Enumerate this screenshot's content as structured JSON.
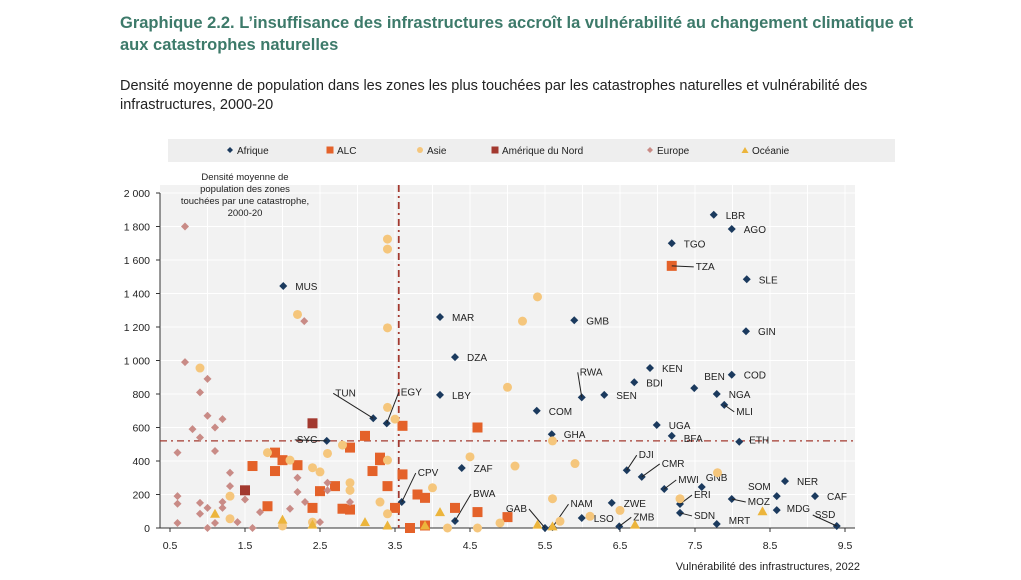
{
  "header": {
    "title": "Graphique 2.2. L’insuffisance des infrastructures accroît la vulnérabilité au changement climatique et aux catastrophes naturelles",
    "subtitle": "Densité moyenne de population dans les zones les plus touchées par les catastrophes naturelles et vulnérabilité des infrastructures, 2000-20"
  },
  "chart_data": {
    "type": "scatter",
    "title": "Graphique 2.2. L’insuffisance des infrastructures accroît la vulnérabilité au changement climatique et aux catastrophes naturelles",
    "xlabel": "Vulnérabilité des infrastructures, 2022",
    "ylabel": "Densité moyenne de population des zones touchées par une catastrophe, 2000-20",
    "ylabel_lines": [
      "Densité moyenne de",
      "population des zones",
      "touchées par une catastrophe,",
      "2000-20"
    ],
    "xlim": [
      0.5,
      9.5
    ],
    "ylim": [
      0,
      2000
    ],
    "xticks": [
      "0.5",
      "1.5",
      "2.5",
      "3.5",
      "4.5",
      "5.5",
      "6.5",
      "7.5",
      "8.5",
      "9.5"
    ],
    "yticks": [
      "0",
      "200",
      "400",
      "600",
      "800",
      "1 000",
      "1 200",
      "1 400",
      "1 600",
      "1 800",
      "2 000"
    ],
    "ytick_values": [
      0,
      200,
      400,
      600,
      800,
      1000,
      1200,
      1400,
      1600,
      1800,
      2000
    ],
    "reference_lines": {
      "x": 3.55,
      "y": 520
    },
    "legend_position": "top",
    "series": [
      {
        "name": "Afrique",
        "color": "#1b3a5e",
        "marker": "diamond",
        "points": [
          {
            "x": 7.75,
            "y": 1870,
            "label": "LBR"
          },
          {
            "x": 7.99,
            "y": 1785,
            "label": "AGO"
          },
          {
            "x": 7.19,
            "y": 1700,
            "label": "TGO"
          },
          {
            "x": 8.19,
            "y": 1485,
            "label": "SLE"
          },
          {
            "x": 8.18,
            "y": 1175,
            "label": "GIN"
          },
          {
            "x": 2.01,
            "y": 1445,
            "label": "MUS"
          },
          {
            "x": 4.1,
            "y": 1260,
            "label": "MAR"
          },
          {
            "x": 5.89,
            "y": 1240,
            "label": "GMB"
          },
          {
            "x": 4.3,
            "y": 1020,
            "label": "DZA"
          },
          {
            "x": 6.9,
            "y": 955,
            "label": "KEN"
          },
          {
            "x": 7.99,
            "y": 915,
            "label": "COD"
          },
          {
            "x": 5.99,
            "y": 780,
            "label": "RWA"
          },
          {
            "x": 6.69,
            "y": 870,
            "label": "BDI"
          },
          {
            "x": 6.29,
            "y": 795,
            "label": "SEN"
          },
          {
            "x": 7.49,
            "y": 835,
            "label": "BEN"
          },
          {
            "x": 7.79,
            "y": 800,
            "label": "NGA"
          },
          {
            "x": 7.89,
            "y": 735,
            "label": "MLI"
          },
          {
            "x": 4.1,
            "y": 795,
            "label": "LBY"
          },
          {
            "x": 5.39,
            "y": 700,
            "label": "COM"
          },
          {
            "x": 6.99,
            "y": 615,
            "label": "UGA"
          },
          {
            "x": 5.59,
            "y": 560,
            "label": "GHA"
          },
          {
            "x": 7.19,
            "y": 550,
            "label": "BFA"
          },
          {
            "x": 8.09,
            "y": 515,
            "label": "ETH"
          },
          {
            "x": 3.21,
            "y": 655,
            "label": "TUN"
          },
          {
            "x": 3.39,
            "y": 625,
            "label": "EGY"
          },
          {
            "x": 2.59,
            "y": 520,
            "label": "SYC"
          },
          {
            "x": 6.59,
            "y": 345,
            "label": "DJI"
          },
          {
            "x": 6.79,
            "y": 305,
            "label": "CMR"
          },
          {
            "x": 7.09,
            "y": 233,
            "label": "MWI"
          },
          {
            "x": 7.59,
            "y": 245,
            "label": "GNB"
          },
          {
            "x": 7.99,
            "y": 173,
            "label": "MOZ"
          },
          {
            "x": 7.3,
            "y": 143,
            "label": "ERI"
          },
          {
            "x": 7.3,
            "y": 90,
            "label": "SDN"
          },
          {
            "x": 7.79,
            "y": 24,
            "label": "MRT"
          },
          {
            "x": 8.59,
            "y": 190,
            "label": "SOM"
          },
          {
            "x": 8.7,
            "y": 280,
            "label": "NER"
          },
          {
            "x": 9.1,
            "y": 190,
            "label": "CAF"
          },
          {
            "x": 8.59,
            "y": 107,
            "label": "MDG"
          },
          {
            "x": 9.39,
            "y": 12,
            "label": "SSD"
          },
          {
            "x": 4.39,
            "y": 358,
            "label": "ZAF"
          },
          {
            "x": 4.3,
            "y": 42,
            "label": "BWA"
          },
          {
            "x": 5.5,
            "y": 0,
            "label": "GAB"
          },
          {
            "x": 5.6,
            "y": 5,
            "label": "NAM"
          },
          {
            "x": 5.99,
            "y": 60,
            "label": "LSO"
          },
          {
            "x": 6.39,
            "y": 150,
            "label": "ZWE"
          },
          {
            "x": 6.49,
            "y": 10,
            "label": "ZMB"
          },
          {
            "x": 3.59,
            "y": 155,
            "label": "CPV"
          }
        ]
      },
      {
        "name": "ALC",
        "color": "#e4622a",
        "marker": "square",
        "points": [
          {
            "x": 7.19,
            "y": 1565,
            "label": "TZA"
          },
          {
            "x": 3.6,
            "y": 610
          },
          {
            "x": 3.1,
            "y": 550
          },
          {
            "x": 1.9,
            "y": 450
          },
          {
            "x": 2.9,
            "y": 480
          },
          {
            "x": 2.0,
            "y": 405
          },
          {
            "x": 2.2,
            "y": 375
          },
          {
            "x": 1.6,
            "y": 370
          },
          {
            "x": 1.9,
            "y": 340
          },
          {
            "x": 3.3,
            "y": 405
          },
          {
            "x": 3.2,
            "y": 340
          },
          {
            "x": 3.6,
            "y": 320
          },
          {
            "x": 2.7,
            "y": 250
          },
          {
            "x": 3.4,
            "y": 250
          },
          {
            "x": 2.5,
            "y": 220
          },
          {
            "x": 1.8,
            "y": 130
          },
          {
            "x": 2.4,
            "y": 120
          },
          {
            "x": 2.8,
            "y": 115
          },
          {
            "x": 2.9,
            "y": 110
          },
          {
            "x": 3.5,
            "y": 120
          },
          {
            "x": 3.8,
            "y": 200
          },
          {
            "x": 3.9,
            "y": 180
          },
          {
            "x": 3.7,
            "y": 0
          },
          {
            "x": 4.3,
            "y": 120
          },
          {
            "x": 3.9,
            "y": 15
          },
          {
            "x": 4.6,
            "y": 600
          },
          {
            "x": 4.6,
            "y": 95
          },
          {
            "x": 5.0,
            "y": 65
          },
          {
            "x": 3.3,
            "y": 420
          }
        ]
      },
      {
        "name": "Asie",
        "color": "#f5c67c",
        "marker": "circle",
        "points": [
          {
            "x": 0.9,
            "y": 955
          },
          {
            "x": 3.4,
            "y": 720
          },
          {
            "x": 3.5,
            "y": 650
          },
          {
            "x": 1.8,
            "y": 450
          },
          {
            "x": 2.1,
            "y": 405
          },
          {
            "x": 2.4,
            "y": 360
          },
          {
            "x": 2.5,
            "y": 335
          },
          {
            "x": 2.6,
            "y": 445
          },
          {
            "x": 2.8,
            "y": 495
          },
          {
            "x": 2.9,
            "y": 270
          },
          {
            "x": 2.9,
            "y": 225
          },
          {
            "x": 3.4,
            "y": 405
          },
          {
            "x": 3.3,
            "y": 155
          },
          {
            "x": 4.0,
            "y": 240
          },
          {
            "x": 4.2,
            "y": 0
          },
          {
            "x": 4.5,
            "y": 425
          },
          {
            "x": 1.3,
            "y": 190
          },
          {
            "x": 1.3,
            "y": 55
          },
          {
            "x": 2.0,
            "y": 12
          },
          {
            "x": 2.4,
            "y": 35
          },
          {
            "x": 3.4,
            "y": 85
          },
          {
            "x": 3.4,
            "y": 1725
          },
          {
            "x": 3.4,
            "y": 1665
          },
          {
            "x": 3.4,
            "y": 1195
          },
          {
            "x": 2.2,
            "y": 1275
          },
          {
            "x": 5.4,
            "y": 1380
          },
          {
            "x": 5.2,
            "y": 1235
          },
          {
            "x": 5.0,
            "y": 840
          },
          {
            "x": 5.6,
            "y": 520
          },
          {
            "x": 5.1,
            "y": 370
          },
          {
            "x": 5.9,
            "y": 385
          },
          {
            "x": 5.6,
            "y": 175
          },
          {
            "x": 5.7,
            "y": 40
          },
          {
            "x": 6.5,
            "y": 105
          },
          {
            "x": 7.3,
            "y": 175
          },
          {
            "x": 7.8,
            "y": 330
          },
          {
            "x": 4.6,
            "y": 0
          },
          {
            "x": 4.9,
            "y": 30
          },
          {
            "x": 6.1,
            "y": 70
          }
        ]
      },
      {
        "name": "Amérique du Nord",
        "color": "#a3392f",
        "marker": "square",
        "points": [
          {
            "x": 2.4,
            "y": 625
          },
          {
            "x": 1.5,
            "y": 225
          }
        ]
      },
      {
        "name": "Europe",
        "color": "#c98b86",
        "marker": "diamond",
        "points": [
          {
            "x": 0.7,
            "y": 1800
          },
          {
            "x": 2.29,
            "y": 1235
          },
          {
            "x": 0.7,
            "y": 990
          },
          {
            "x": 1.0,
            "y": 890
          },
          {
            "x": 0.9,
            "y": 810
          },
          {
            "x": 1.0,
            "y": 670
          },
          {
            "x": 0.8,
            "y": 590
          },
          {
            "x": 1.1,
            "y": 600
          },
          {
            "x": 1.2,
            "y": 650
          },
          {
            "x": 0.9,
            "y": 540
          },
          {
            "x": 1.1,
            "y": 460
          },
          {
            "x": 0.6,
            "y": 450
          },
          {
            "x": 1.3,
            "y": 330
          },
          {
            "x": 1.3,
            "y": 250
          },
          {
            "x": 1.2,
            "y": 155
          },
          {
            "x": 1.2,
            "y": 120
          },
          {
            "x": 1.5,
            "y": 170
          },
          {
            "x": 1.0,
            "y": 120
          },
          {
            "x": 0.9,
            "y": 150
          },
          {
            "x": 0.9,
            "y": 85
          },
          {
            "x": 1.1,
            "y": 30
          },
          {
            "x": 1.0,
            "y": 0
          },
          {
            "x": 1.4,
            "y": 35
          },
          {
            "x": 0.6,
            "y": 190
          },
          {
            "x": 0.6,
            "y": 145
          },
          {
            "x": 0.6,
            "y": 30
          },
          {
            "x": 1.6,
            "y": 0
          },
          {
            "x": 1.7,
            "y": 95
          },
          {
            "x": 2.1,
            "y": 115
          },
          {
            "x": 2.2,
            "y": 215
          },
          {
            "x": 2.2,
            "y": 300
          },
          {
            "x": 2.3,
            "y": 155
          },
          {
            "x": 2.6,
            "y": 270
          },
          {
            "x": 2.6,
            "y": 225
          },
          {
            "x": 2.9,
            "y": 155
          },
          {
            "x": 2.5,
            "y": 35
          }
        ]
      },
      {
        "name": "Océanie",
        "color": "#ecb53c",
        "marker": "triangle",
        "points": [
          {
            "x": 1.1,
            "y": 85
          },
          {
            "x": 2.0,
            "y": 50
          },
          {
            "x": 2.4,
            "y": 20
          },
          {
            "x": 3.1,
            "y": 35
          },
          {
            "x": 3.4,
            "y": 15
          },
          {
            "x": 4.1,
            "y": 95
          },
          {
            "x": 3.9,
            "y": 15
          },
          {
            "x": 5.4,
            "y": 20
          },
          {
            "x": 5.6,
            "y": 10
          },
          {
            "x": 6.7,
            "y": 20
          },
          {
            "x": 8.4,
            "y": 100
          }
        ]
      }
    ]
  }
}
